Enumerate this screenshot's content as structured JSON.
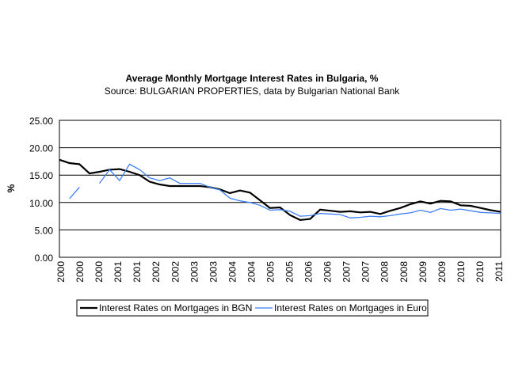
{
  "chart_data": {
    "type": "line",
    "title": "Average Monthly Mortgage Interest Rates in Bulgaria, %",
    "subtitle": "Source: BULGARIAN PROPERTIES, data by Bulgarian National Bank",
    "y_label": "%",
    "x_tick_labels": [
      "2000",
      "2000",
      "2000",
      "2001",
      "2001",
      "2002",
      "2002",
      "2003",
      "2003",
      "2004",
      "2004",
      "2005",
      "2005",
      "2006",
      "2006",
      "2007",
      "2007",
      "2008",
      "2008",
      "2009",
      "2009",
      "2010",
      "2010",
      "2011"
    ],
    "ylim": [
      0,
      25
    ],
    "yticks": [
      {
        "value": 0,
        "label": "0.00"
      },
      {
        "value": 5,
        "label": "5.00"
      },
      {
        "value": 10,
        "label": "10.00"
      },
      {
        "value": 15,
        "label": "15.00"
      },
      {
        "value": 20,
        "label": "20.00"
      },
      {
        "value": 25,
        "label": "25.00"
      }
    ],
    "grid": true,
    "series": [
      {
        "name": "Interest Rates on Mortgages in BGN",
        "color": "#000000",
        "values": [
          17.8,
          17.2,
          17.0,
          15.3,
          15.6,
          16.0,
          16.1,
          15.6,
          15.0,
          13.8,
          13.3,
          13.0,
          13.0,
          13.0,
          13.0,
          12.8,
          12.4,
          11.7,
          12.2,
          11.8,
          10.4,
          9.0,
          9.1,
          7.7,
          6.8,
          7.0,
          8.7,
          8.5,
          8.3,
          8.4,
          8.2,
          8.3,
          7.9,
          8.5,
          9.0,
          9.7,
          10.2,
          9.8,
          10.3,
          10.2,
          9.5,
          9.4,
          9.0,
          8.6,
          8.3
        ]
      },
      {
        "name": "Interest Rates on Mortgages in Euro",
        "color": "#3d7ff5",
        "values": [
          null,
          10.7,
          12.8,
          null,
          13.5,
          16.0,
          14.0,
          17.0,
          16.0,
          14.5,
          14.0,
          14.5,
          13.5,
          13.5,
          13.5,
          12.8,
          12.3,
          10.8,
          10.3,
          10.0,
          9.5,
          8.6,
          8.7,
          8.4,
          7.5,
          7.6,
          8.0,
          7.9,
          7.8,
          7.2,
          7.3,
          7.5,
          7.4,
          7.6,
          7.9,
          8.1,
          8.6,
          8.2,
          8.9,
          8.6,
          8.8,
          8.5,
          8.2,
          8.1,
          8.0
        ]
      }
    ]
  }
}
